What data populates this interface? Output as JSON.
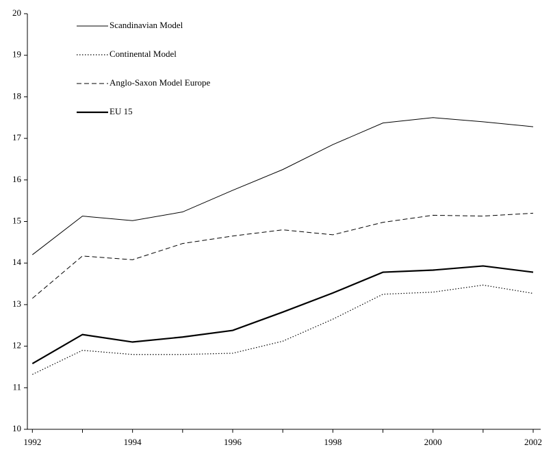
{
  "chart_data": {
    "type": "line",
    "x": [
      1992,
      1993,
      1994,
      1995,
      1996,
      1997,
      1998,
      1999,
      2000,
      2001,
      2002
    ],
    "xlim": [
      1991.9,
      2002.15
    ],
    "xticks": [
      1992,
      1994,
      1996,
      1998,
      2000,
      2002
    ],
    "xminorticks": [
      1993,
      1995,
      1997,
      1999,
      2001
    ],
    "ylim": [
      10,
      20
    ],
    "yticks": [
      10,
      11,
      12,
      13,
      14,
      15,
      16,
      17,
      18,
      19,
      20
    ],
    "grid": false,
    "legend": "upper-left",
    "series": [
      {
        "name": "Scandinavian Model",
        "color": "#000000",
        "width": 1,
        "dash": "none",
        "values": [
          14.2,
          15.13,
          15.02,
          15.23,
          15.75,
          16.25,
          16.85,
          17.37,
          17.5,
          17.4,
          17.28
        ]
      },
      {
        "name": "Continental Model",
        "color": "#000000",
        "width": 1.2,
        "dash": "1.5 2.5",
        "values": [
          11.32,
          11.9,
          11.8,
          11.8,
          11.83,
          12.12,
          12.65,
          13.25,
          13.3,
          13.47,
          13.27
        ]
      },
      {
        "name": "Anglo-Saxon Model Europe",
        "color": "#000000",
        "width": 1,
        "dash": "7 4",
        "values": [
          13.15,
          14.17,
          14.08,
          14.47,
          14.65,
          14.8,
          14.68,
          14.98,
          15.15,
          15.13,
          15.2
        ]
      },
      {
        "name": "EU 15",
        "color": "#000000",
        "width": 2.2,
        "dash": "none",
        "values": [
          11.58,
          12.28,
          12.1,
          12.22,
          12.38,
          12.82,
          13.28,
          13.78,
          13.83,
          13.93,
          13.78
        ]
      }
    ]
  }
}
